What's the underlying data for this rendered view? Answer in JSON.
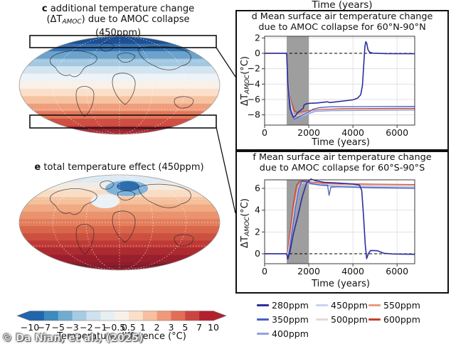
{
  "watermark": "© Da Nian, et al., (2025)",
  "top_axis_label": "Time (years)",
  "panel_c": {
    "label": "c",
    "title_line1": "additional temperature change",
    "title_line2_pre": "(ΔT",
    "title_line2_sub": "AMOC",
    "title_line2_post": ") due to AMOC collapse",
    "title_line3": "(450ppm)"
  },
  "panel_e": {
    "label": "e",
    "title": "total temperature effect (450ppm)"
  },
  "maps": {
    "c": {
      "bands": [
        "#1e4f93",
        "#3672b0",
        "#6ba3cc",
        "#a3c8e1",
        "#d3e5f0",
        "#edf3f6",
        "#f9f0e8",
        "#fbdfc9",
        "#f6c3a2",
        "#ef9d7b",
        "#e3775b",
        "#cf4f42",
        "#ad2a33"
      ]
    },
    "e": {
      "bands": [
        "#dde9f3",
        "#f4ebe0",
        "#f8dcc4",
        "#f5c19d",
        "#f0ab84",
        "#ea946f",
        "#e37e5c",
        "#d9674c",
        "#cc5040",
        "#bf3a36",
        "#ae2a31",
        "#991f2e",
        "#8f1c2b"
      ],
      "blob_outer": "#7fb2d8",
      "blob_inner": "#2e6cab",
      "blob_pale": "#eaf2f8"
    }
  },
  "colorbar": {
    "label": "Temperature difference (°C)",
    "ticks": [
      "-10",
      "-7",
      "-5",
      "-3",
      "-2",
      "-1",
      "-0.5",
      "0.5",
      "1",
      "2",
      "3",
      "5",
      "7",
      "10"
    ],
    "segment_colors": [
      "#2166ac",
      "#3c8abe",
      "#71abd0",
      "#a6cbe3",
      "#cfe0ee",
      "#e8eff3",
      "#f8f1ea",
      "#fbdfca",
      "#f7c0a0",
      "#f0997a",
      "#e26e56",
      "#cc4441",
      "#b22030"
    ]
  },
  "legend": {
    "items": [
      {
        "label": "280ppm",
        "color": "#2c2f9e"
      },
      {
        "label": "350ppm",
        "color": "#4a5fc6"
      },
      {
        "label": "400ppm",
        "color": "#8fa3e0"
      },
      {
        "label": "450ppm",
        "color": "#c8d3ee"
      },
      {
        "label": "500ppm",
        "color": "#e6d8d2"
      },
      {
        "label": "550ppm",
        "color": "#e89a82"
      },
      {
        "label": "600ppm",
        "color": "#c4402f"
      }
    ]
  },
  "chart_data": [
    {
      "id": "d",
      "type": "line",
      "panel_label": "d",
      "title": "Mean surface air temperature change due to AMOC collapse for 60°N-90°N",
      "title_line1": "Mean surface air temperature change",
      "title_line2": "due to AMOC collapse for 60°N-90°N",
      "xlabel": "Time (years)",
      "ylabel": "ΔT_AMOC (°C)",
      "ylabel_pre": "ΔT",
      "ylabel_sub": "AMOC",
      "ylabel_post": "(°C)",
      "xlim": [
        0,
        6800
      ],
      "ylim": [
        -9.33,
        2.22
      ],
      "xticks": [
        0,
        2000,
        4000,
        6000
      ],
      "yticks": [
        2,
        0,
        -2,
        -4,
        -6,
        -8
      ],
      "shaded_x": [
        1000,
        2000
      ],
      "zero_dashed": true,
      "grid": true,
      "series": [
        {
          "name": "280ppm",
          "color": "#2c2f9e",
          "width": 1.6,
          "points": [
            [
              0,
              0
            ],
            [
              1000,
              0
            ],
            [
              1050,
              -3.8
            ],
            [
              1150,
              -7.2
            ],
            [
              1300,
              -8.3
            ],
            [
              1400,
              -8.1
            ],
            [
              1500,
              -7.7
            ],
            [
              1650,
              -7.35
            ],
            [
              1750,
              -7.15
            ],
            [
              1790,
              -6.7
            ],
            [
              1900,
              -6.55
            ],
            [
              2000,
              -6.5
            ],
            [
              2400,
              -6.45
            ],
            [
              2850,
              -6.3
            ],
            [
              2950,
              -6.4
            ],
            [
              3400,
              -6.25
            ],
            [
              4000,
              -6.05
            ],
            [
              4200,
              -5.85
            ],
            [
              4350,
              -5.4
            ],
            [
              4430,
              -4.2
            ],
            [
              4480,
              -2
            ],
            [
              4540,
              0.8
            ],
            [
              4580,
              1.5
            ],
            [
              4620,
              1.35
            ],
            [
              4680,
              0.5
            ],
            [
              4750,
              0.15
            ],
            [
              4900,
              0.02
            ],
            [
              5500,
              -0.03
            ],
            [
              6800,
              -0.05
            ]
          ]
        },
        {
          "name": "350ppm",
          "color": "#4a5fc6",
          "width": 1.3,
          "points": [
            [
              0,
              0
            ],
            [
              1000,
              0
            ],
            [
              1050,
              -4
            ],
            [
              1200,
              -7.8
            ],
            [
              1350,
              -8.55
            ],
            [
              1500,
              -8.35
            ],
            [
              1700,
              -8.05
            ],
            [
              2000,
              -7.6
            ],
            [
              2200,
              -7.25
            ],
            [
              2500,
              -7.05
            ],
            [
              3000,
              -6.95
            ],
            [
              6800,
              -6.9
            ]
          ]
        },
        {
          "name": "400ppm",
          "color": "#8fa3e0",
          "width": 1.3,
          "points": [
            [
              0,
              0
            ],
            [
              1000,
              0
            ],
            [
              1060,
              -4.2
            ],
            [
              1200,
              -7.6
            ],
            [
              1400,
              -8.85
            ],
            [
              1600,
              -8.6
            ],
            [
              1800,
              -8.2
            ],
            [
              2000,
              -7.85
            ],
            [
              2300,
              -7.55
            ],
            [
              3000,
              -7.45
            ],
            [
              6800,
              -7.38
            ]
          ]
        },
        {
          "name": "450ppm",
          "color": "#c8d3ee",
          "width": 1.3,
          "points": [
            [
              0,
              0
            ],
            [
              1000,
              0
            ],
            [
              1060,
              -4
            ],
            [
              1200,
              -7
            ],
            [
              1350,
              -8.45
            ],
            [
              1550,
              -8.3
            ],
            [
              1800,
              -8.0
            ],
            [
              2000,
              -7.75
            ],
            [
              2300,
              -7.5
            ],
            [
              3000,
              -7.4
            ],
            [
              6800,
              -7.32
            ]
          ]
        },
        {
          "name": "500ppm",
          "color": "#e6d8d2",
          "width": 1.3,
          "points": [
            [
              0,
              0
            ],
            [
              1000,
              0
            ],
            [
              1050,
              -3.5
            ],
            [
              1150,
              -6
            ],
            [
              1300,
              -8.0
            ],
            [
              1500,
              -8.1
            ],
            [
              1700,
              -7.9
            ],
            [
              2000,
              -7.6
            ],
            [
              2500,
              -7.42
            ],
            [
              3500,
              -7.35
            ],
            [
              6800,
              -7.3
            ]
          ]
        },
        {
          "name": "550ppm",
          "color": "#e89a82",
          "width": 1.3,
          "points": [
            [
              0,
              0
            ],
            [
              1000,
              0
            ],
            [
              1040,
              -3
            ],
            [
              1100,
              -5
            ],
            [
              1250,
              -7.4
            ],
            [
              1400,
              -7.9
            ],
            [
              1600,
              -7.75
            ],
            [
              2000,
              -7.5
            ],
            [
              2500,
              -7.35
            ],
            [
              3500,
              -7.28
            ],
            [
              6800,
              -7.25
            ]
          ]
        },
        {
          "name": "600ppm",
          "color": "#c4402f",
          "width": 1.3,
          "points": [
            [
              0,
              0
            ],
            [
              1000,
              0
            ],
            [
              1030,
              -2.5
            ],
            [
              1080,
              -4.6
            ],
            [
              1200,
              -6.2
            ],
            [
              1350,
              -7.5
            ],
            [
              1500,
              -7.7
            ],
            [
              1700,
              -7.6
            ],
            [
              2000,
              -7.45
            ],
            [
              2500,
              -7.3
            ],
            [
              3500,
              -7.2
            ],
            [
              5000,
              -7.18
            ],
            [
              6800,
              -7.15
            ]
          ]
        }
      ]
    },
    {
      "id": "f",
      "type": "line",
      "panel_label": "f",
      "title": "Mean surface air temperature change due to AMOC collapse for 60°S-90°S",
      "title_line1": "Mean surface air temperature change",
      "title_line2": "due to AMOC collapse for 60°S-90°S",
      "xlabel": "Time (years)",
      "ylabel": "ΔT_AMOC (°C)",
      "ylabel_pre": "ΔT",
      "ylabel_sub": "AMOC",
      "ylabel_post": "(°C)",
      "xlim": [
        0,
        6800
      ],
      "ylim": [
        -0.91,
        6.78
      ],
      "xticks": [
        0,
        2000,
        4000,
        6000
      ],
      "yticks": [
        0,
        2,
        4,
        6
      ],
      "shaded_x": [
        1000,
        2000
      ],
      "zero_dashed": true,
      "grid": true,
      "series": [
        {
          "name": "280ppm",
          "color": "#2c2f9e",
          "width": 1.6,
          "points": [
            [
              0,
              0
            ],
            [
              1000,
              0
            ],
            [
              1050,
              -0.5
            ],
            [
              1150,
              0.2
            ],
            [
              1300,
              1.8
            ],
            [
              1500,
              3.4
            ],
            [
              1700,
              5.2
            ],
            [
              1900,
              6.5
            ],
            [
              2100,
              6.85
            ],
            [
              2300,
              6.7
            ],
            [
              2700,
              6.55
            ],
            [
              3200,
              6.5
            ],
            [
              4000,
              6.4
            ],
            [
              4300,
              6.3
            ],
            [
              4400,
              5.8
            ],
            [
              4480,
              3.5
            ],
            [
              4560,
              0.8
            ],
            [
              4620,
              -0.45
            ],
            [
              4700,
              0
            ],
            [
              4800,
              0.3
            ],
            [
              5100,
              0.28
            ],
            [
              5400,
              0.05
            ],
            [
              5800,
              -0.02
            ],
            [
              6800,
              -0.05
            ]
          ]
        },
        {
          "name": "350ppm",
          "color": "#4a5fc6",
          "width": 1.3,
          "points": [
            [
              0,
              0
            ],
            [
              1000,
              0
            ],
            [
              1040,
              -0.45
            ],
            [
              1120,
              0.3
            ],
            [
              1250,
              2.2
            ],
            [
              1400,
              4.3
            ],
            [
              1550,
              6
            ],
            [
              1700,
              6.7
            ],
            [
              1900,
              6.65
            ],
            [
              2100,
              6.45
            ],
            [
              2500,
              6.32
            ],
            [
              2850,
              6.3
            ],
            [
              2920,
              5.35
            ],
            [
              3000,
              6.1
            ],
            [
              3300,
              6.15
            ],
            [
              4000,
              6.1
            ],
            [
              5000,
              6.05
            ],
            [
              6800,
              6.0
            ]
          ]
        },
        {
          "name": "400ppm",
          "color": "#8fa3e0",
          "width": 1.3,
          "points": [
            [
              0,
              0
            ],
            [
              1000,
              0
            ],
            [
              1050,
              -0.3
            ],
            [
              1130,
              0.2
            ],
            [
              1250,
              1.8
            ],
            [
              1450,
              4.5
            ],
            [
              1620,
              6.2
            ],
            [
              1800,
              6.5
            ],
            [
              2100,
              6.4
            ],
            [
              2600,
              6.25
            ],
            [
              3500,
              6.15
            ],
            [
              6800,
              6.05
            ]
          ]
        },
        {
          "name": "450ppm",
          "color": "#c8d3ee",
          "width": 1.3,
          "points": [
            [
              0,
              0
            ],
            [
              1000,
              0
            ],
            [
              1080,
              0
            ],
            [
              1220,
              1.5
            ],
            [
              1400,
              4
            ],
            [
              1580,
              6
            ],
            [
              1750,
              6.45
            ],
            [
              2100,
              6.4
            ],
            [
              2600,
              6.3
            ],
            [
              3500,
              6.22
            ],
            [
              6800,
              6.15
            ]
          ]
        },
        {
          "name": "500ppm",
          "color": "#e6d8d2",
          "width": 1.3,
          "points": [
            [
              0,
              0
            ],
            [
              1000,
              0
            ],
            [
              1070,
              0.1
            ],
            [
              1200,
              1.8
            ],
            [
              1380,
              4.5
            ],
            [
              1550,
              6.2
            ],
            [
              1700,
              6.5
            ],
            [
              2100,
              6.45
            ],
            [
              2600,
              6.35
            ],
            [
              3500,
              6.28
            ],
            [
              6800,
              6.2
            ]
          ]
        },
        {
          "name": "550ppm",
          "color": "#e89a82",
          "width": 1.3,
          "points": [
            [
              0,
              0
            ],
            [
              1000,
              0
            ],
            [
              1060,
              0.2
            ],
            [
              1170,
              1.8
            ],
            [
              1320,
              4.2
            ],
            [
              1480,
              6.1
            ],
            [
              1650,
              6.55
            ],
            [
              2000,
              6.55
            ],
            [
              2500,
              6.45
            ],
            [
              3500,
              6.35
            ],
            [
              6800,
              6.3
            ]
          ]
        },
        {
          "name": "600ppm",
          "color": "#c4402f",
          "width": 1.3,
          "points": [
            [
              0,
              0
            ],
            [
              1000,
              0
            ],
            [
              1050,
              0.3
            ],
            [
              1150,
              2
            ],
            [
              1300,
              4.5
            ],
            [
              1450,
              6.3
            ],
            [
              1600,
              6.65
            ],
            [
              2000,
              6.6
            ],
            [
              2500,
              6.5
            ],
            [
              3500,
              6.42
            ],
            [
              5000,
              6.38
            ],
            [
              6800,
              6.35
            ]
          ]
        }
      ]
    }
  ]
}
